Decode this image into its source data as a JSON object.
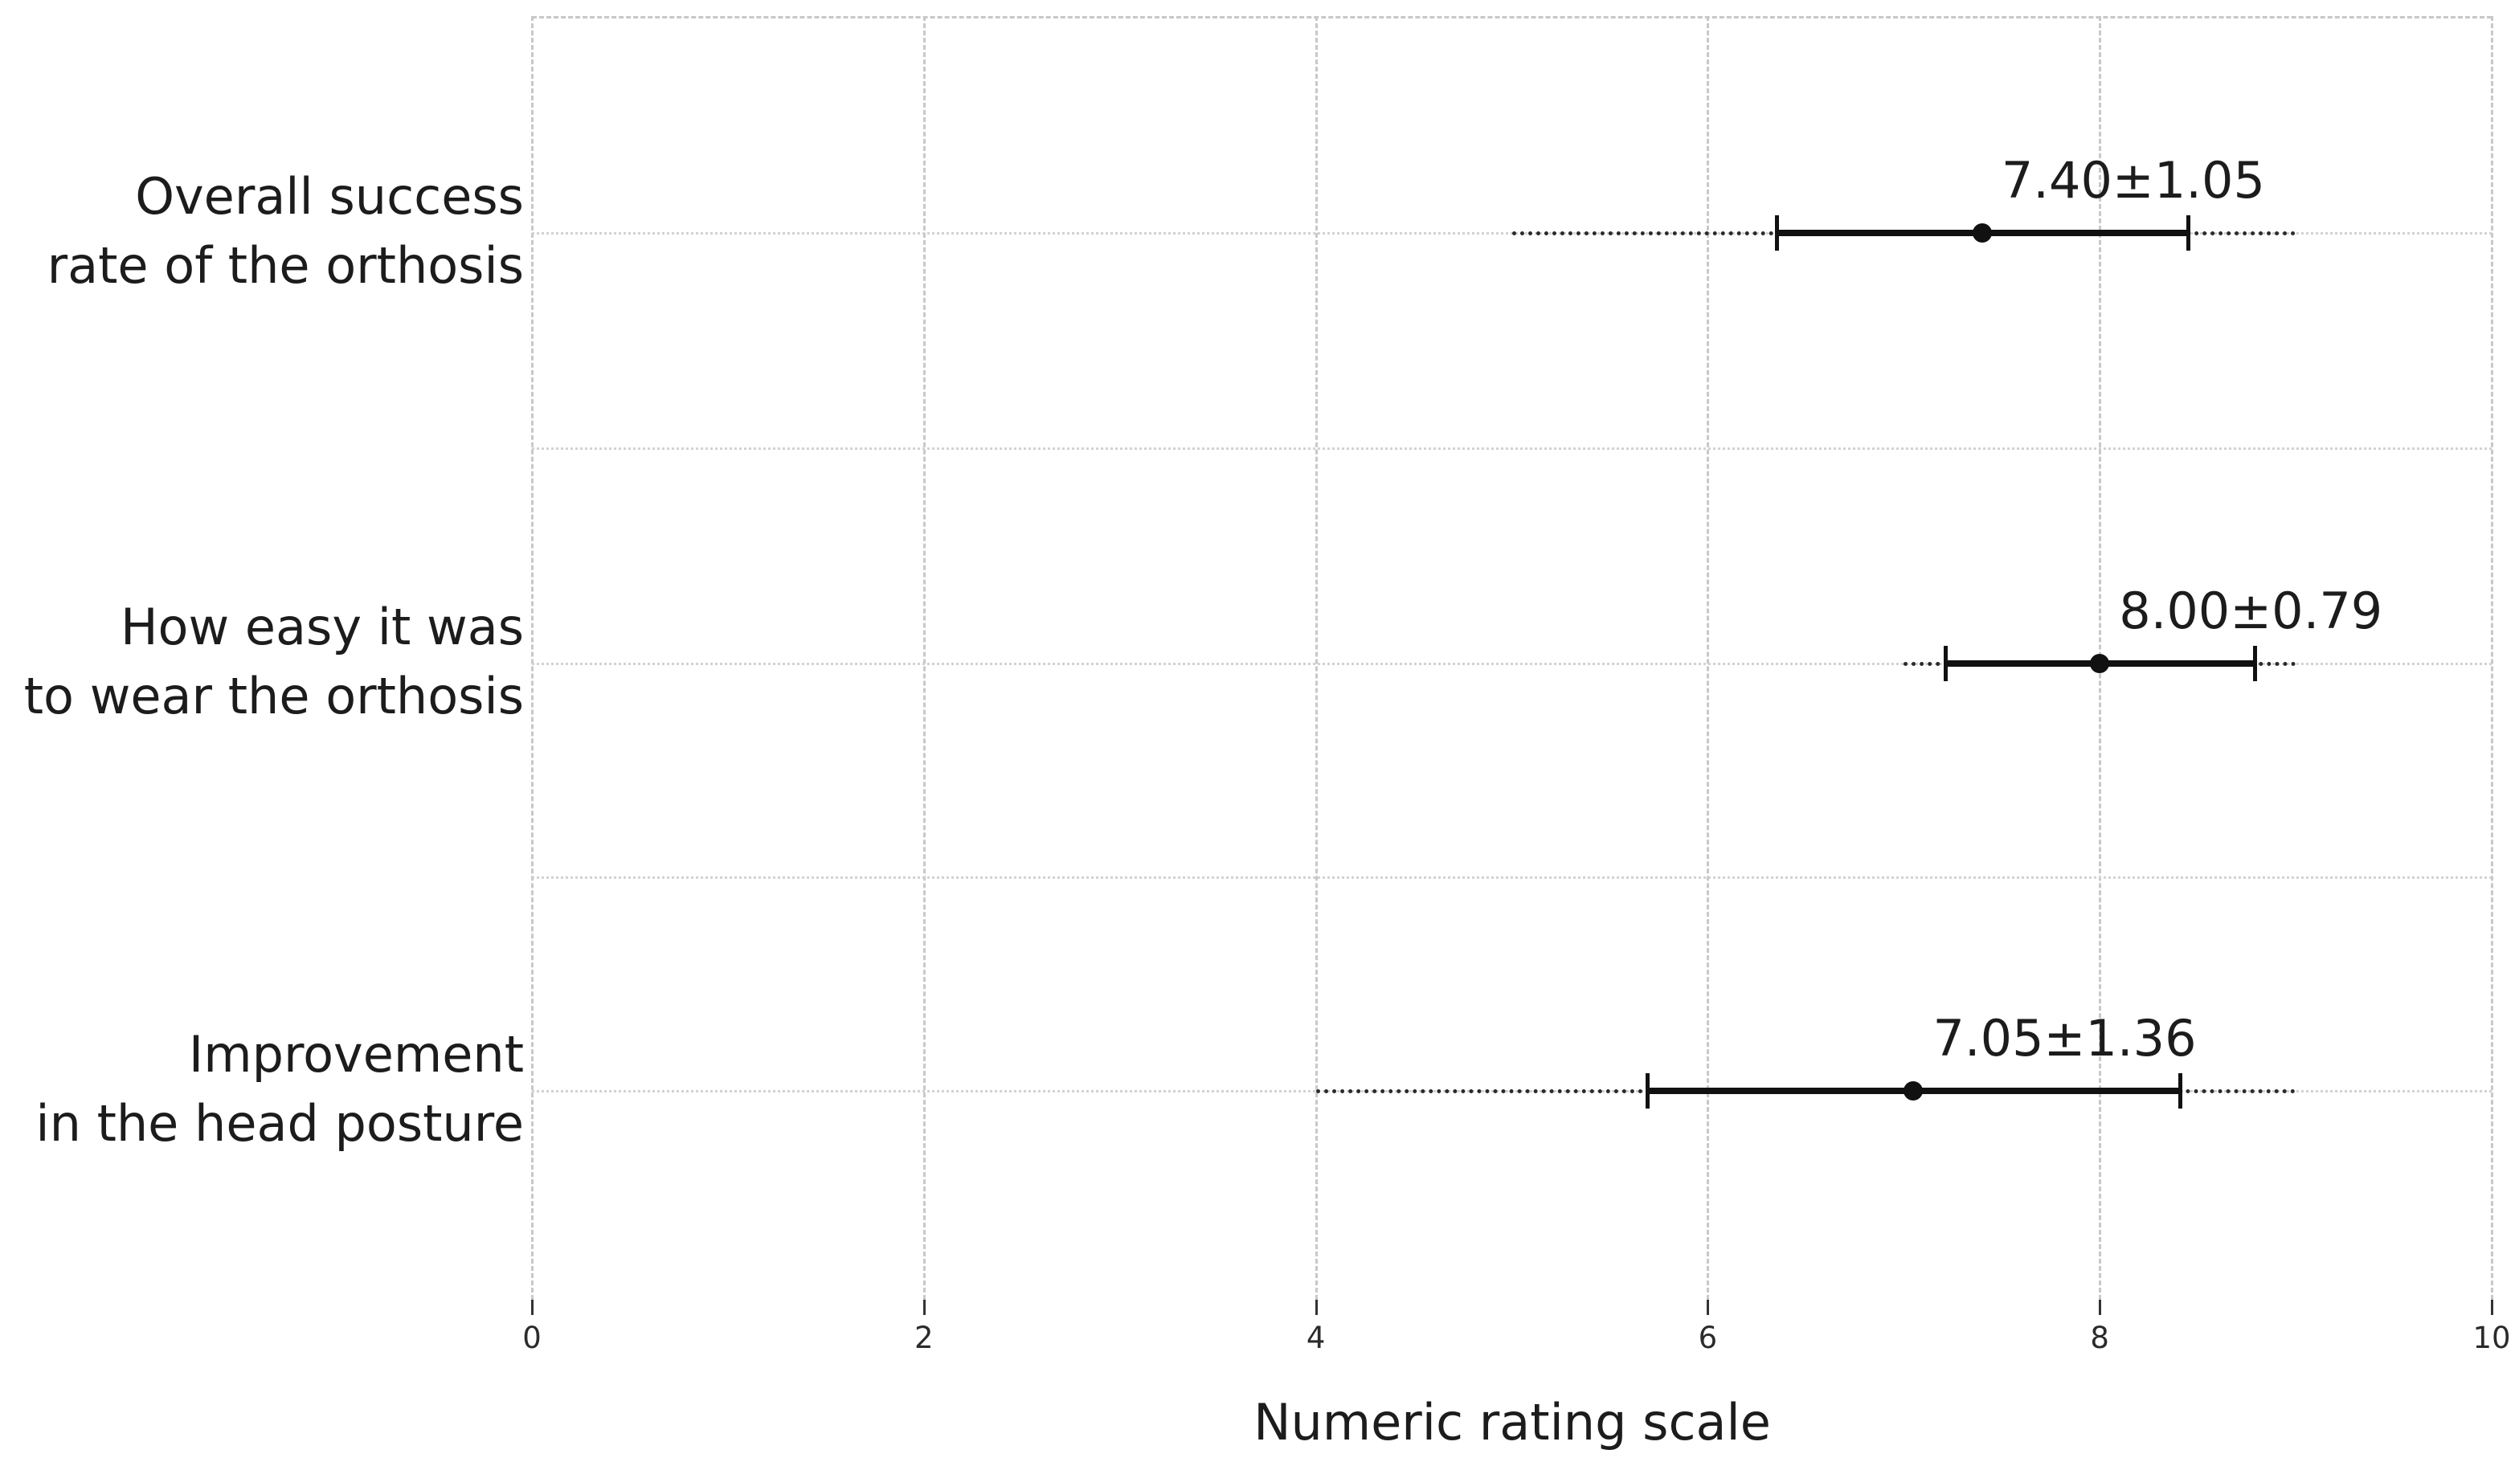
{
  "chart_data": {
    "type": "scatter",
    "subtype": "horizontal-errorbar",
    "title": "",
    "xlabel": "Numeric rating scale",
    "xlim": [
      0,
      10
    ],
    "xticks": [
      0,
      2,
      4,
      6,
      8,
      10
    ],
    "grid": {
      "vertical": "light gray dashed line at every x tick",
      "horizontal": "light gray dotted line at every category row and at midpoints between rows",
      "top_border": "light gray dashed line"
    },
    "legend": "none",
    "marker": "filled black circle at mean, thick black bar with end caps at mean±SD, dark dotted line spanning min–max range",
    "categories": [
      "Overall success rate of the orthosis",
      "How easy it was to wear the orthosis",
      "Improvement in the head posture"
    ],
    "series": [
      {
        "name": "Patient ratings (mean ± SD, dotted min–max range)",
        "points": [
          {
            "category_lines": [
              "Overall success",
              "rate of the orthosis"
            ],
            "mean": 7.4,
            "sd": 1.05,
            "whisker_low": 6.35,
            "whisker_high": 8.45,
            "range_min": 5.0,
            "range_max": 9.0,
            "annotation": "7.40±1.05"
          },
          {
            "category_lines": [
              "How easy it was",
              "to wear the orthosis"
            ],
            "mean": 8.0,
            "sd": 0.79,
            "whisker_low": 7.21,
            "whisker_high": 8.79,
            "range_min": 7.0,
            "range_max": 9.0,
            "annotation": "8.00±0.79"
          },
          {
            "category_lines": [
              "Improvement",
              "in the head posture"
            ],
            "mean": 7.05,
            "sd": 1.36,
            "whisker_low": 5.69,
            "whisker_high": 8.41,
            "range_min": 4.0,
            "range_max": 9.0,
            "annotation": "7.05±1.36"
          }
        ]
      }
    ],
    "colors": {
      "marker": "#111111",
      "error_bar": "#111111",
      "range_dotted": "#2b2b2b",
      "grid_light": "#c8c8c8",
      "text": "#1c1c1c",
      "background": "#ffffff"
    }
  }
}
